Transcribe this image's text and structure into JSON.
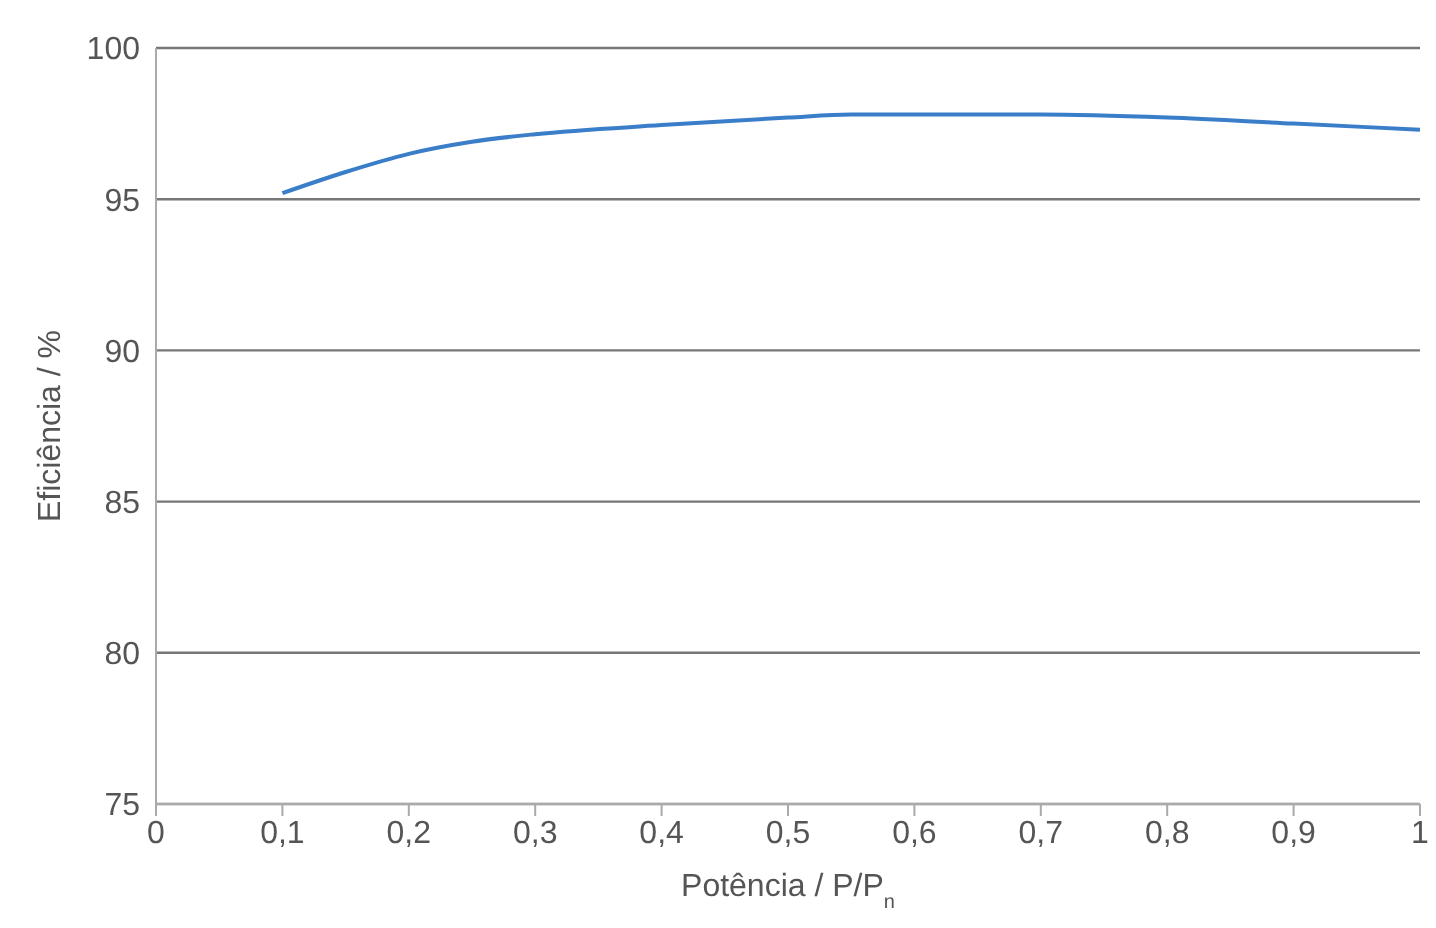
{
  "chart_data": {
    "type": "line",
    "xlabel": "Potência / P/P$_{n}$",
    "ylabel": "Eficiência / %",
    "x": [
      0.1,
      0.15,
      0.2,
      0.25,
      0.3,
      0.4,
      0.5,
      0.55,
      0.6,
      0.7,
      0.8,
      0.9,
      1.0
    ],
    "series": [
      {
        "color": "#3a7dc9",
        "values": [
          95.2,
          95.9,
          96.5,
          96.9,
          97.15,
          97.45,
          97.7,
          97.8,
          97.8,
          97.8,
          97.7,
          97.5,
          97.3
        ]
      }
    ],
    "xlim": [
      0,
      1
    ],
    "ylim": [
      75,
      100
    ],
    "xticks": [
      {
        "value": 0,
        "label": "0"
      },
      {
        "value": 0.1,
        "label": "0,1"
      },
      {
        "value": 0.2,
        "label": "0,2"
      },
      {
        "value": 0.3,
        "label": "0,3"
      },
      {
        "value": 0.4,
        "label": "0,4"
      },
      {
        "value": 0.5,
        "label": "0,5"
      },
      {
        "value": 0.6,
        "label": "0,6"
      },
      {
        "value": 0.7,
        "label": "0,7"
      },
      {
        "value": 0.8,
        "label": "0,8"
      },
      {
        "value": 0.9,
        "label": "0,9"
      },
      {
        "value": 1,
        "label": "1"
      }
    ],
    "yticks": [
      75,
      80,
      85,
      90,
      95,
      100
    ],
    "grid": "y",
    "legend": false,
    "marker": "none",
    "line_style": "solid"
  }
}
